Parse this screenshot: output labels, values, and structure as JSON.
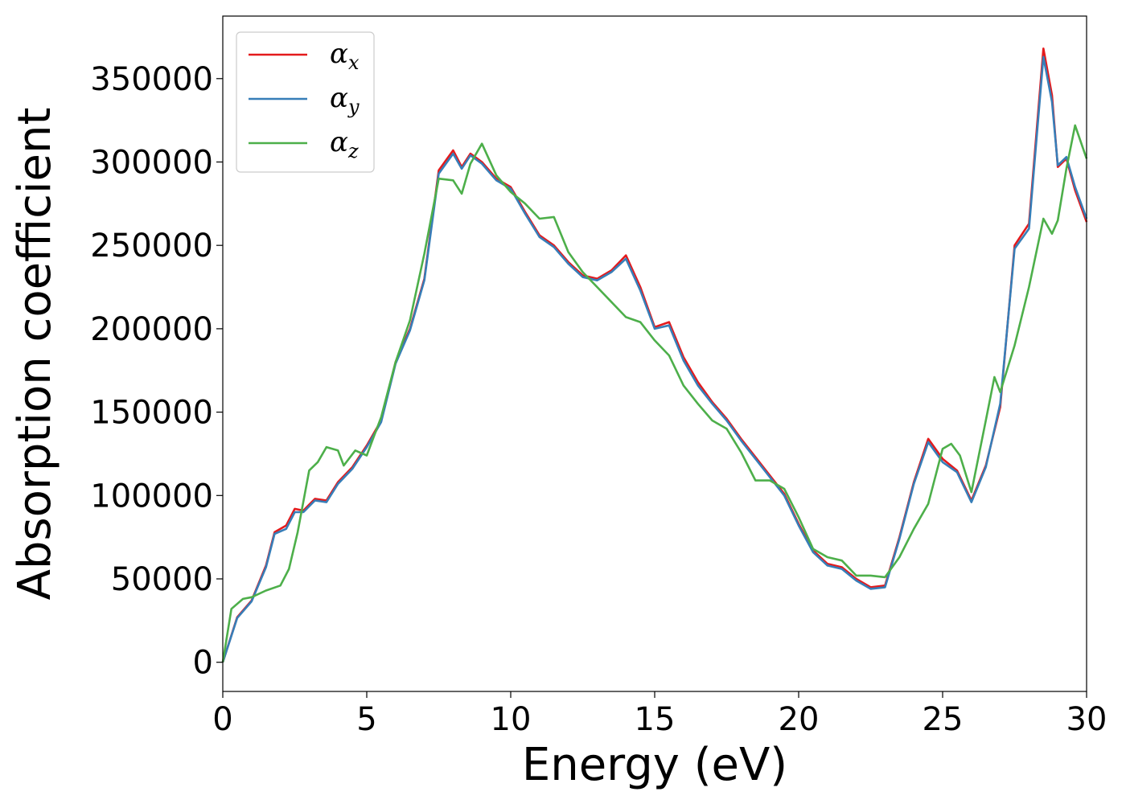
{
  "chart_data": {
    "type": "line",
    "xlabel": "Energy (eV)",
    "ylabel": "Absorption coefficient",
    "xlim": [
      0,
      30
    ],
    "ylim": [
      -17500,
      387500
    ],
    "xticks": [
      "0",
      "5",
      "10",
      "15",
      "20",
      "25",
      "30"
    ],
    "yticks": [
      "0",
      "50000",
      "100000",
      "150000",
      "200000",
      "250000",
      "300000",
      "350000"
    ],
    "grid": false,
    "legend_position": "top-left",
    "series": [
      {
        "name": "αx",
        "legend_symbol": "α",
        "legend_subscript": "x",
        "color": "#e41a1c",
        "x": [
          0,
          0.5,
          1,
          1.5,
          1.8,
          2.2,
          2.5,
          2.8,
          3.2,
          3.6,
          4,
          4.5,
          5,
          5.5,
          6,
          6.5,
          7,
          7.5,
          8,
          8.3,
          8.6,
          9,
          9.5,
          10,
          10.5,
          11,
          11.5,
          12,
          12.5,
          13,
          13.5,
          14,
          14.5,
          15,
          15.5,
          16,
          16.5,
          17,
          17.5,
          18,
          18.5,
          19,
          19.5,
          20,
          20.5,
          21,
          21.5,
          22,
          22.5,
          23,
          23.5,
          24,
          24.5,
          25,
          25.5,
          26,
          26.5,
          27,
          27.5,
          28,
          28.5,
          28.8,
          29,
          29.3,
          29.6,
          30
        ],
        "y": [
          0,
          27000,
          37000,
          58000,
          78000,
          82000,
          92000,
          91000,
          98000,
          97000,
          108000,
          117000,
          130000,
          145000,
          180000,
          200000,
          230000,
          295000,
          307000,
          297000,
          305000,
          300000,
          290000,
          285000,
          270000,
          256000,
          250000,
          240000,
          232000,
          230000,
          235000,
          244000,
          225000,
          201000,
          204000,
          183000,
          168000,
          156000,
          146000,
          134000,
          123000,
          112000,
          101000,
          83000,
          67000,
          59000,
          57000,
          50000,
          45000,
          46000,
          75000,
          108000,
          134000,
          122000,
          115000,
          97000,
          118000,
          153000,
          250000,
          263000,
          368000,
          340000,
          297000,
          302000,
          283000,
          264000
        ]
      },
      {
        "name": "αy",
        "legend_symbol": "α",
        "legend_subscript": "y",
        "color": "#377eb8",
        "x": [
          0,
          0.5,
          1,
          1.5,
          1.8,
          2.2,
          2.5,
          2.8,
          3.2,
          3.6,
          4,
          4.5,
          5,
          5.5,
          6,
          6.5,
          7,
          7.5,
          8,
          8.3,
          8.6,
          9,
          9.5,
          10,
          10.5,
          11,
          11.5,
          12,
          12.5,
          13,
          13.5,
          14,
          14.5,
          15,
          15.5,
          16,
          16.5,
          17,
          17.5,
          18,
          18.5,
          19,
          19.5,
          20,
          20.5,
          21,
          21.5,
          22,
          22.5,
          23,
          23.5,
          24,
          24.5,
          25,
          25.5,
          26,
          26.5,
          27,
          27.5,
          28,
          28.5,
          28.8,
          29,
          29.3,
          29.6,
          30
        ],
        "y": [
          0,
          26500,
          36500,
          57000,
          77000,
          80000,
          90000,
          90000,
          97000,
          96000,
          107000,
          116000,
          129000,
          144000,
          179000,
          199000,
          229000,
          293000,
          305000,
          296000,
          304000,
          299000,
          289000,
          284000,
          269000,
          255000,
          249000,
          239000,
          231000,
          229000,
          234000,
          242000,
          223000,
          200000,
          202000,
          181000,
          166000,
          155000,
          145000,
          133000,
          122000,
          111000,
          100000,
          82000,
          66000,
          58000,
          56000,
          49000,
          44000,
          45000,
          74000,
          107000,
          132000,
          120000,
          114000,
          96000,
          117000,
          155000,
          248000,
          260000,
          363000,
          336000,
          298000,
          303000,
          285000,
          266000
        ]
      },
      {
        "name": "αz",
        "legend_symbol": "α",
        "legend_subscript": "z",
        "color": "#4daf4a",
        "x": [
          0,
          0.3,
          0.7,
          1,
          1.5,
          2,
          2.3,
          2.6,
          3,
          3.3,
          3.6,
          4,
          4.2,
          4.6,
          5,
          5.5,
          6,
          6.5,
          7,
          7.5,
          8,
          8.3,
          8.6,
          9,
          9.5,
          10,
          10.5,
          11,
          11.5,
          12,
          12.5,
          13,
          13.5,
          14,
          14.5,
          15,
          15.5,
          16,
          16.5,
          17,
          17.5,
          18,
          18.5,
          19,
          19.5,
          20,
          20.5,
          21,
          21.5,
          22,
          22.5,
          23,
          23.5,
          24,
          24.5,
          25,
          25.3,
          25.6,
          26,
          26.5,
          26.8,
          27,
          27.5,
          28,
          28.5,
          28.8,
          29,
          29.3,
          29.6,
          30
        ],
        "y": [
          0,
          32000,
          38000,
          39000,
          43000,
          46000,
          56000,
          78000,
          115000,
          120000,
          129000,
          127000,
          118000,
          127000,
          124000,
          147000,
          180000,
          205000,
          245000,
          290000,
          289000,
          281000,
          299000,
          311000,
          292000,
          282000,
          275000,
          266000,
          267000,
          246000,
          234000,
          225000,
          216000,
          207000,
          204000,
          193000,
          184000,
          166000,
          155000,
          145000,
          140000,
          126000,
          109000,
          109000,
          104000,
          87000,
          68000,
          63000,
          61000,
          52000,
          52000,
          51000,
          63000,
          80000,
          95000,
          128000,
          131000,
          124000,
          102000,
          145000,
          171000,
          162000,
          190000,
          225000,
          266000,
          257000,
          265000,
          296000,
          322000,
          302000
        ]
      }
    ]
  }
}
